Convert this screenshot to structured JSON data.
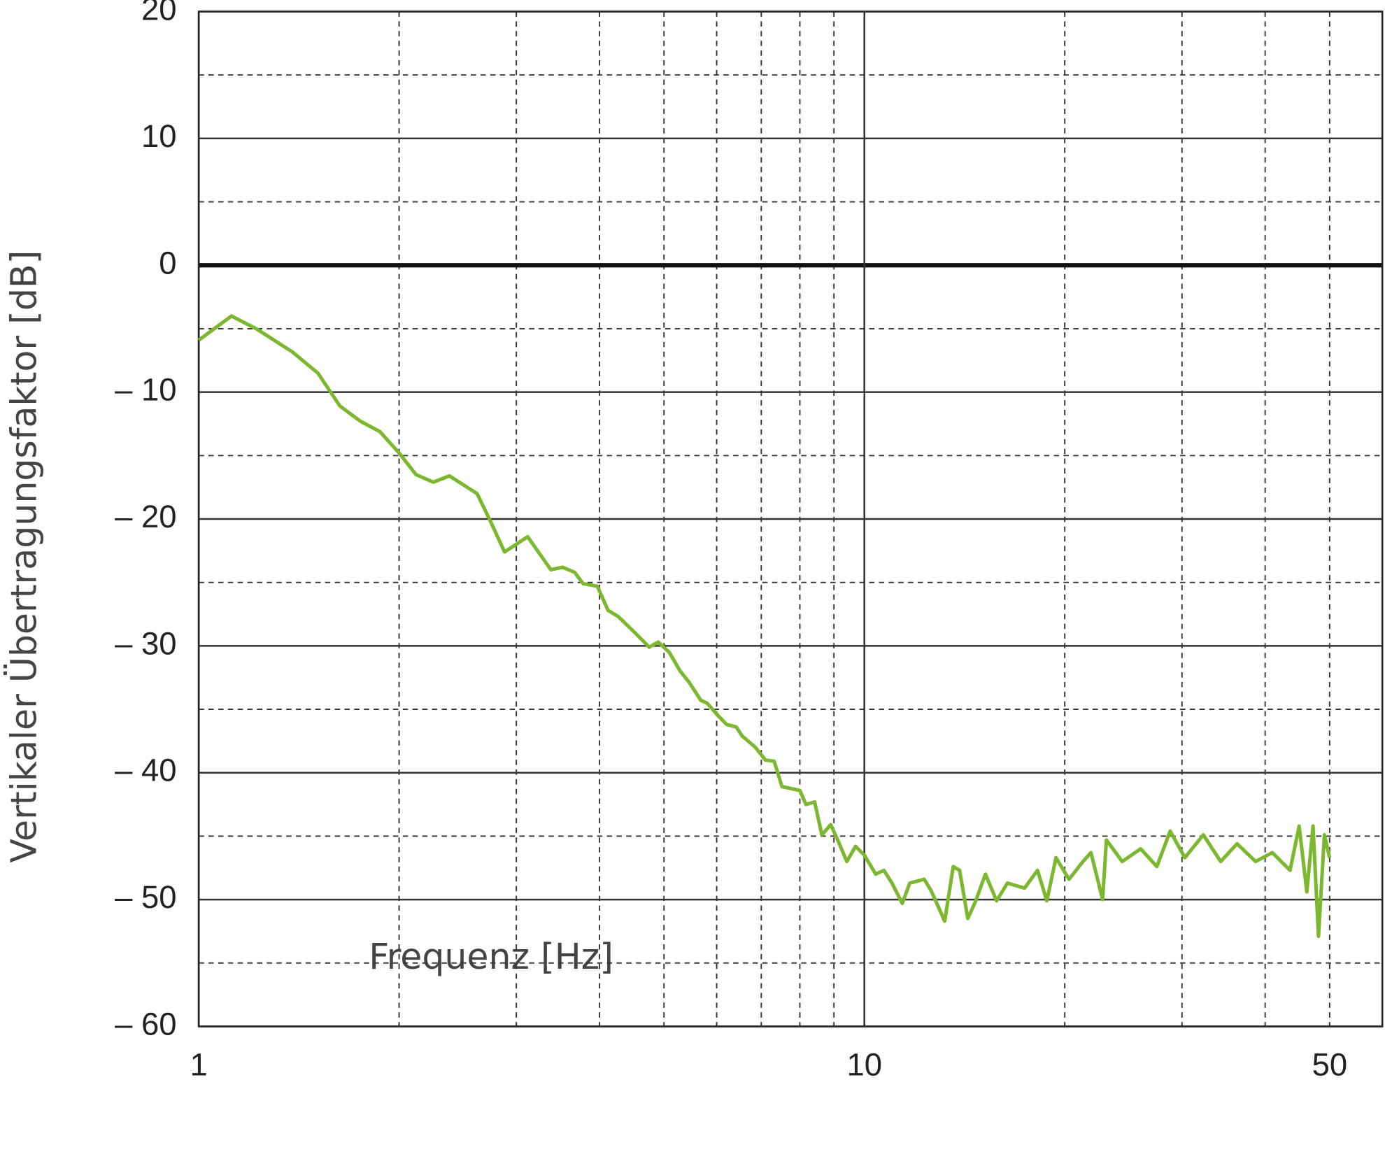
{
  "chart_data": {
    "type": "line",
    "x_label": "Frequenz [Hz]",
    "y_label": "Vertikaler Übertragungsfaktor [dB]",
    "x_log": true,
    "xlim": [
      1,
      60
    ],
    "ylim": [
      -60,
      20
    ],
    "xticks": [
      1,
      10,
      50
    ],
    "yticks": [
      20,
      10,
      0,
      {
        "value": -10,
        "label": "– 10"
      },
      {
        "value": -20,
        "label": "– 20"
      },
      {
        "value": -30,
        "label": "– 30"
      },
      {
        "value": -40,
        "label": "– 40"
      },
      {
        "value": -50,
        "label": "– 50"
      },
      {
        "value": -60,
        "label": "– 60"
      }
    ],
    "x_minor_grid": [
      2,
      3,
      4,
      5,
      6,
      7,
      8,
      9,
      20,
      30,
      40,
      50
    ],
    "y_minor_grid": [
      15,
      5,
      -5,
      -15,
      -25,
      -35,
      -45,
      -55
    ],
    "zero_line": true,
    "series": [
      {
        "color": "#7cb82f",
        "x": [
          1,
          1.12,
          1.22,
          1.38,
          1.51,
          1.63,
          1.75,
          1.87,
          2.0,
          2.12,
          2.25,
          2.38,
          2.62,
          2.75,
          2.88,
          3.12,
          3.38,
          3.52,
          3.67,
          3.78,
          3.97,
          4.12,
          4.27,
          4.53,
          4.75,
          4.9,
          5.09,
          5.29,
          5.46,
          5.68,
          5.8,
          6.03,
          6.21,
          6.42,
          6.55,
          6.86,
          7.1,
          7.32,
          7.52,
          8.0,
          8.17,
          8.42,
          8.63,
          8.9,
          9.12,
          9.41,
          9.7,
          10.0,
          10.4,
          10.7,
          11.0,
          11.4,
          11.7,
          12.3,
          12.6,
          13.2,
          13.6,
          13.9,
          14.3,
          14.7,
          15.2,
          15.8,
          16.4,
          17.4,
          18.2,
          18.8,
          19.4,
          20.3,
          21.3,
          21.9,
          22.8,
          23.1,
          24.4,
          26.0,
          27.5,
          28.8,
          30.3,
          32.3,
          34.3,
          36.3,
          38.7,
          41.0,
          43.6,
          45.0,
          46.2,
          47.2,
          48.1,
          49.1,
          50.0
        ],
        "values": [
          -5.9,
          -4.0,
          -5.0,
          -6.8,
          -8.5,
          -11.1,
          -12.3,
          -13.1,
          -14.8,
          -16.5,
          -17.1,
          -16.6,
          -18.0,
          -20.3,
          -22.6,
          -21.4,
          -24.0,
          -23.8,
          -24.2,
          -25.1,
          -25.3,
          -27.2,
          -27.7,
          -29.0,
          -30.1,
          -29.7,
          -30.5,
          -32.0,
          -32.9,
          -34.3,
          -34.5,
          -35.5,
          -36.2,
          -36.4,
          -37.1,
          -38.0,
          -39.0,
          -39.1,
          -41.1,
          -41.4,
          -42.5,
          -42.3,
          -44.9,
          -44.1,
          -45.3,
          -47.0,
          -45.8,
          -46.5,
          -48.0,
          -47.7,
          -48.7,
          -50.3,
          -48.7,
          -48.4,
          -49.3,
          -51.7,
          -47.4,
          -47.7,
          -51.5,
          -50.1,
          -48.0,
          -50.1,
          -48.7,
          -49.1,
          -47.7,
          -50.1,
          -46.7,
          -48.4,
          -47.0,
          -46.3,
          -50.0,
          -45.3,
          -47.0,
          -46.0,
          -47.4,
          -44.6,
          -46.7,
          -44.9,
          -47.0,
          -45.6,
          -47.0,
          -46.3,
          -47.7,
          -44.2,
          -49.4,
          -44.2,
          -52.9,
          -44.9,
          -46.7
        ]
      }
    ]
  }
}
